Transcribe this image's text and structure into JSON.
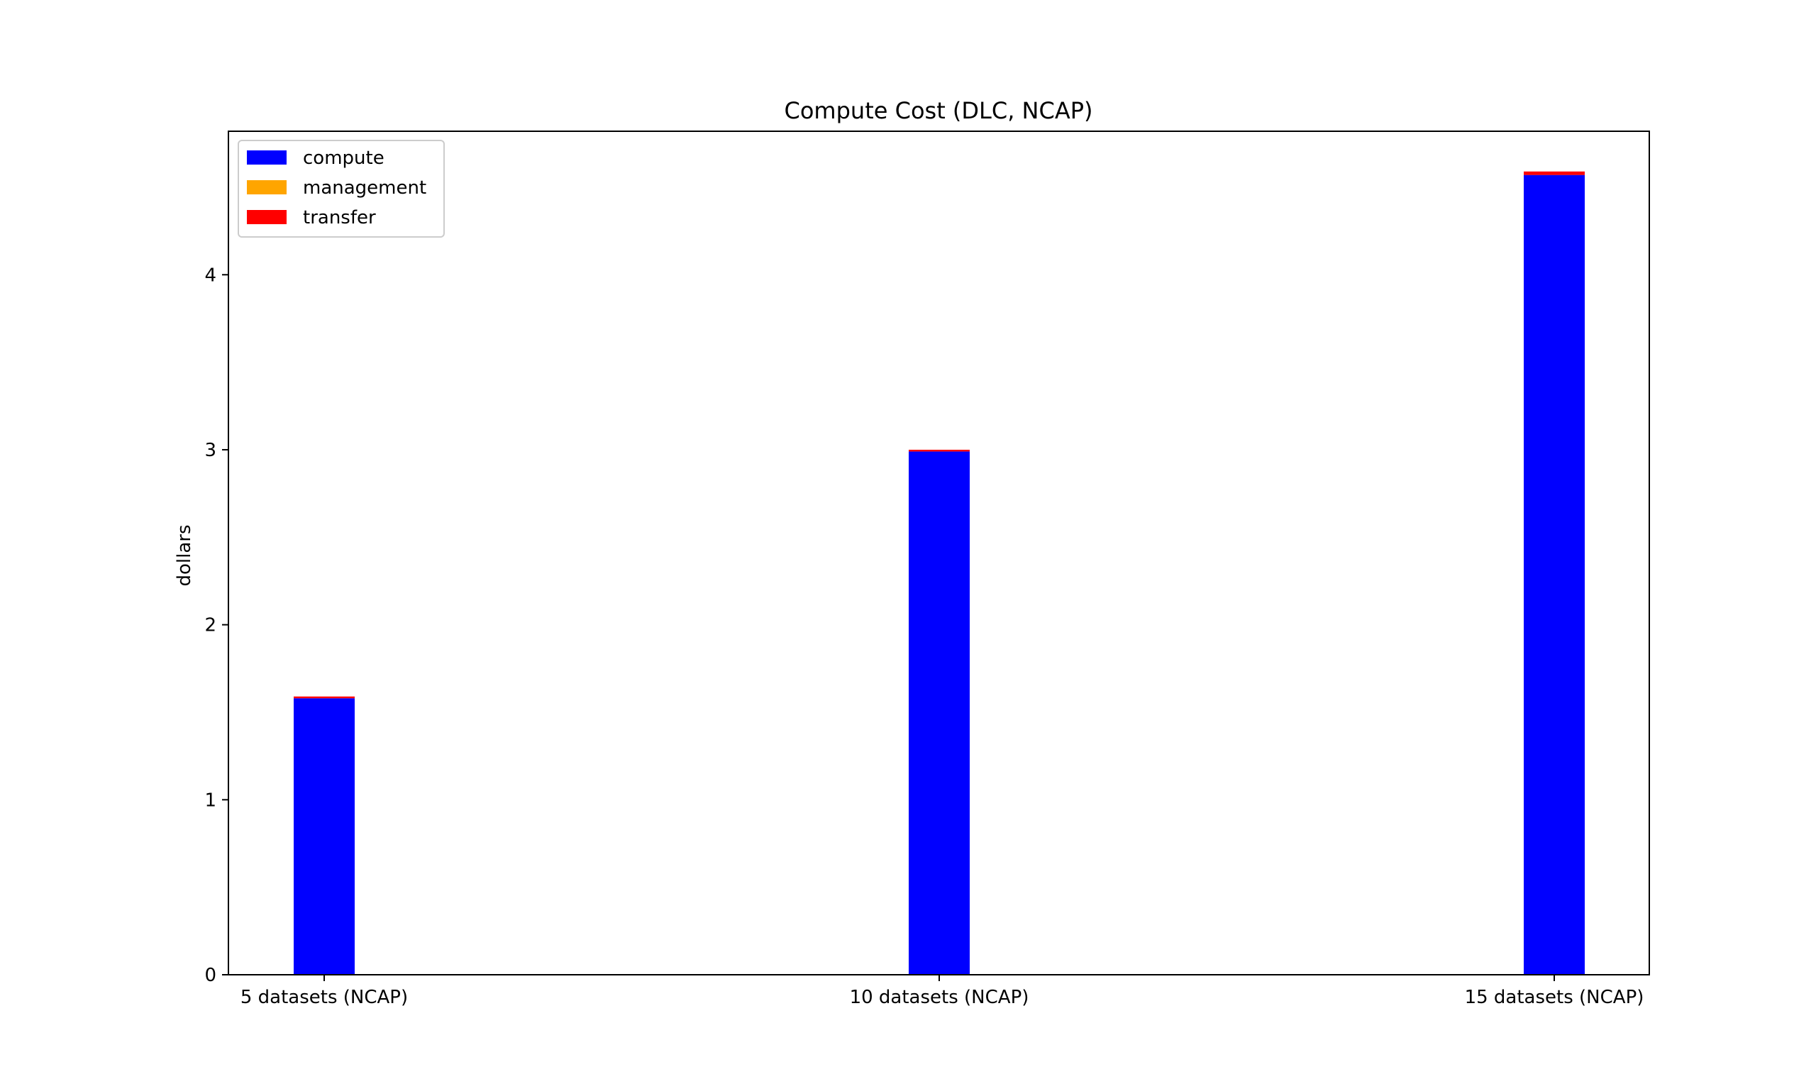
{
  "chart_data": {
    "type": "bar",
    "stacked": true,
    "title": "Compute Cost (DLC, NCAP)",
    "xlabel": "",
    "ylabel": "dollars",
    "categories": [
      "5 datasets (NCAP)",
      "10 datasets (NCAP)",
      "15 datasets (NCAP)"
    ],
    "series": [
      {
        "name": "compute",
        "color": "#0000ff",
        "values": [
          1.58,
          2.99,
          4.57
        ]
      },
      {
        "name": "management",
        "color": "#ffa500",
        "values": [
          0.0,
          0.0,
          0.0
        ]
      },
      {
        "name": "transfer",
        "color": "#ff0000",
        "values": [
          0.01,
          0.01,
          0.02
        ]
      }
    ],
    "ylim": [
      0,
      4.82
    ],
    "yticks": [
      0,
      1,
      2,
      3,
      4
    ],
    "grid": false,
    "legend_position": "top-left"
  }
}
